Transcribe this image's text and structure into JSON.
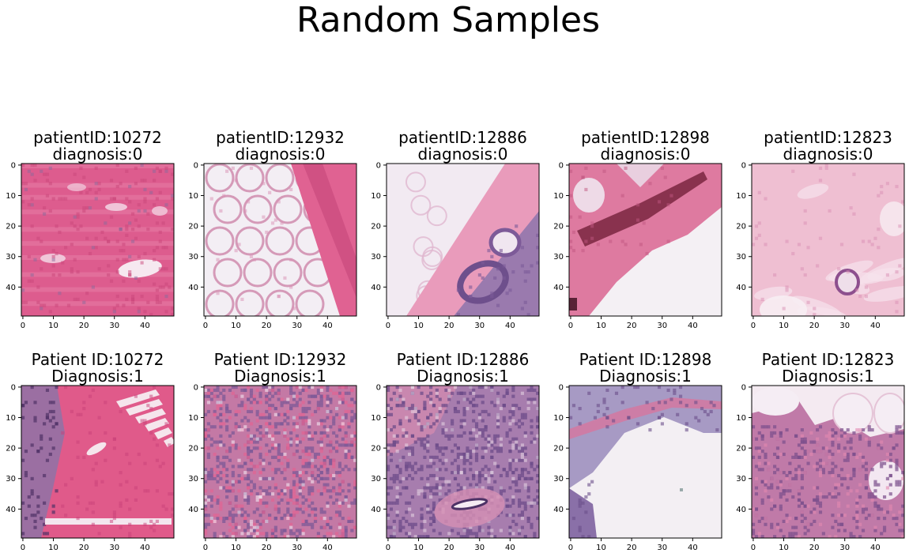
{
  "figure": {
    "title": "Random Samples",
    "colors": {
      "background": "#ffffff",
      "axis": "#000000",
      "pink_tissue": "#e05a8c",
      "light_pink": "#f0b3c9",
      "purple_nuclei": "#7a5a95",
      "white_space": "#f3eef3"
    }
  },
  "chart_data": [
    {
      "type": "image",
      "panel": "top-1",
      "title_line1": "patientID:10272",
      "title_line2": "diagnosis:0",
      "x_ticks": [
        0,
        10,
        20,
        30,
        40
      ],
      "y_ticks": [
        0,
        10,
        20,
        30,
        40
      ],
      "xlim": [
        0,
        49
      ],
      "ylim": [
        49,
        0
      ],
      "tissue": "pink-stroma-with-white-gaps"
    },
    {
      "type": "image",
      "panel": "top-2",
      "title_line1": "patientID:12932",
      "title_line2": "diagnosis:0",
      "x_ticks": [
        0,
        10,
        20,
        30,
        40
      ],
      "y_ticks": [
        0,
        10,
        20,
        30,
        40
      ],
      "xlim": [
        0,
        49
      ],
      "ylim": [
        49,
        0
      ],
      "tissue": "adipose-with-pink-band"
    },
    {
      "type": "image",
      "panel": "top-3",
      "title_line1": "patientID:12886",
      "title_line2": "diagnosis:0",
      "x_ticks": [
        0,
        10,
        20,
        30,
        40
      ],
      "y_ticks": [
        0,
        10,
        20,
        30,
        40
      ],
      "xlim": [
        0,
        49
      ],
      "ylim": [
        49,
        0
      ],
      "tissue": "pink-diagonal-with-purple-duct"
    },
    {
      "type": "image",
      "panel": "top-4",
      "title_line1": "patientID:12898",
      "title_line2": "diagnosis:0",
      "x_ticks": [
        0,
        10,
        20,
        30,
        40
      ],
      "y_ticks": [
        0,
        10,
        20,
        30,
        40
      ],
      "xlim": [
        0,
        49
      ],
      "ylim": [
        49,
        0
      ],
      "tissue": "pink-fragment-over-white"
    },
    {
      "type": "image",
      "panel": "top-5",
      "title_line1": "patientID:12823",
      "title_line2": "diagnosis:0",
      "x_ticks": [
        0,
        10,
        20,
        30,
        40
      ],
      "y_ticks": [
        0,
        10,
        20,
        30,
        40
      ],
      "xlim": [
        0,
        49
      ],
      "ylim": [
        49,
        0
      ],
      "tissue": "light-pink-with-small-ring"
    },
    {
      "type": "image",
      "panel": "bottom-1",
      "title_line1": "Patient ID:10272",
      "title_line2": "Diagnosis:1",
      "x_ticks": [
        0,
        10,
        20,
        30,
        40
      ],
      "y_ticks": [
        0,
        10,
        20,
        30,
        40
      ],
      "xlim": [
        0,
        49
      ],
      "ylim": [
        49,
        0
      ],
      "tissue": "pink-with-purple-left-edge"
    },
    {
      "type": "image",
      "panel": "bottom-2",
      "title_line1": "Patient ID:12932",
      "title_line2": "Diagnosis:1",
      "x_ticks": [
        0,
        10,
        20,
        30,
        40
      ],
      "y_ticks": [
        0,
        10,
        20,
        30,
        40
      ],
      "xlim": [
        0,
        49
      ],
      "ylim": [
        49,
        0
      ],
      "tissue": "mixed-purple-pink"
    },
    {
      "type": "image",
      "panel": "bottom-3",
      "title_line1": "Patient ID:12886",
      "title_line2": "Diagnosis:1",
      "x_ticks": [
        0,
        10,
        20,
        30,
        40
      ],
      "y_ticks": [
        0,
        10,
        20,
        30,
        40
      ],
      "xlim": [
        0,
        49
      ],
      "ylim": [
        49,
        0
      ],
      "tissue": "purple-dense-with-duct"
    },
    {
      "type": "image",
      "panel": "bottom-4",
      "title_line1": "Patient ID:12898",
      "title_line2": "Diagnosis:1",
      "x_ticks": [
        0,
        10,
        20,
        30,
        40
      ],
      "y_ticks": [
        0,
        10,
        20,
        30,
        40
      ],
      "xlim": [
        0,
        49
      ],
      "ylim": [
        49,
        0
      ],
      "tissue": "purple-band-over-white"
    },
    {
      "type": "image",
      "panel": "bottom-5",
      "title_line1": "Patient ID:12823",
      "title_line2": "Diagnosis:1",
      "x_ticks": [
        0,
        10,
        20,
        30,
        40
      ],
      "y_ticks": [
        0,
        10,
        20,
        30,
        40
      ],
      "xlim": [
        0,
        49
      ],
      "ylim": [
        49,
        0
      ],
      "tissue": "white-top-purple-bottom"
    }
  ]
}
